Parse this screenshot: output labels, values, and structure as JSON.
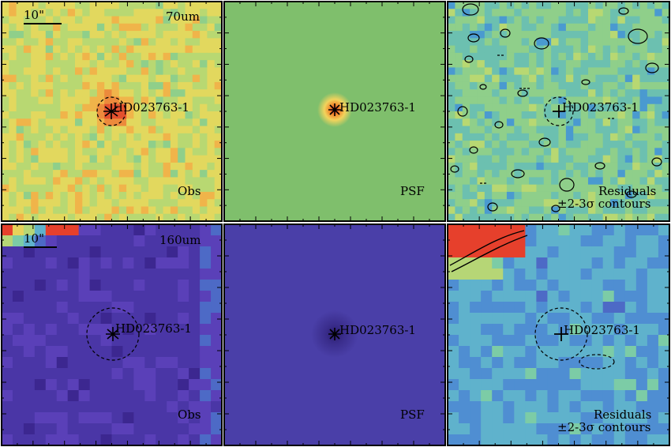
{
  "figure": {
    "source_name": "HD023763-1",
    "rows": [
      {
        "band": "70um",
        "scalebar_label": "10\"",
        "panels": [
          {
            "kind": "obs",
            "label": "Obs"
          },
          {
            "kind": "psf",
            "label": "PSF"
          },
          {
            "kind": "residuals",
            "label": "Residuals",
            "sublabel": "±2-3σ contours"
          }
        ]
      },
      {
        "band": "160um",
        "scalebar_label": "10\"",
        "panels": [
          {
            "kind": "obs",
            "label": "Obs"
          },
          {
            "kind": "psf",
            "label": "PSF"
          },
          {
            "kind": "residuals",
            "label": "Residuals",
            "sublabel": "±2-3σ contours"
          }
        ]
      }
    ],
    "colors": {
      "psf_70_background": "#7fbf6c",
      "psf_160_background": "#4a3fa8",
      "hot": "#e8342c",
      "frame": "#000000"
    }
  }
}
